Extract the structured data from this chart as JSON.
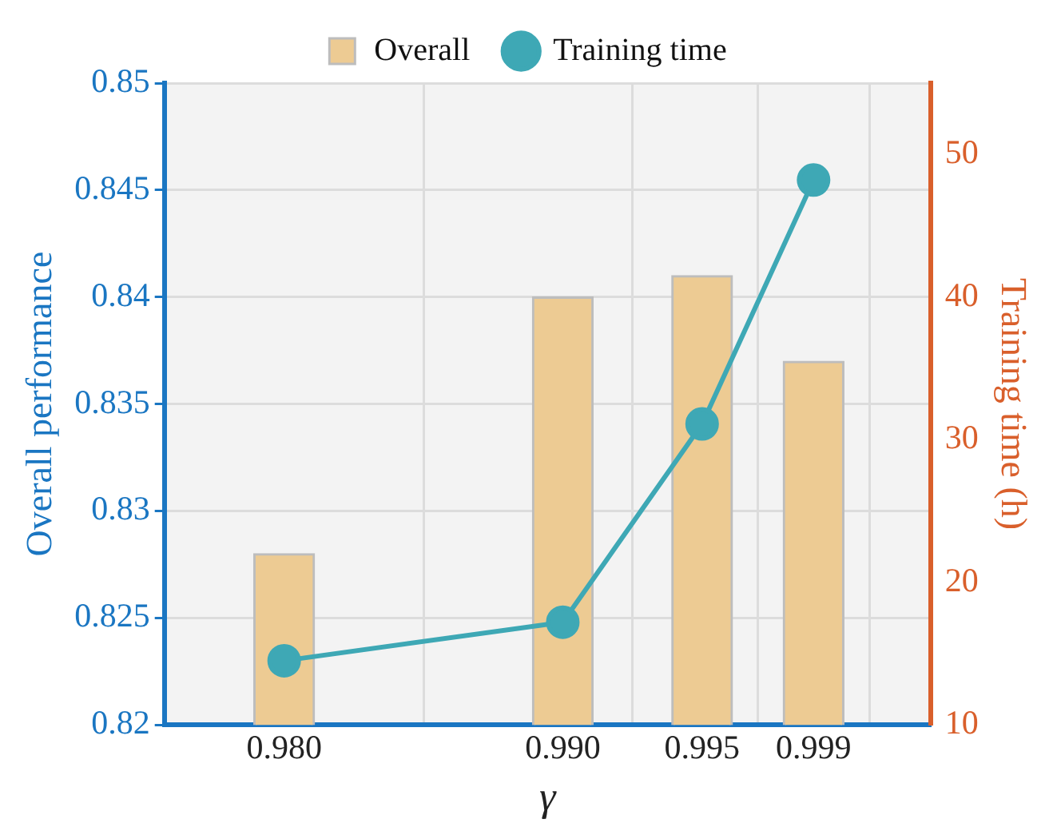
{
  "chart_data": {
    "type": "bar",
    "x": [
      0.98,
      0.99,
      0.995,
      0.999
    ],
    "xlim": [
      0.9757,
      1.0032
    ],
    "xticks": [
      {
        "value": 0.98,
        "label": "0.980"
      },
      {
        "value": 0.99,
        "label": "0.990"
      },
      {
        "value": 0.995,
        "label": "0.995"
      },
      {
        "value": 0.999,
        "label": "0.999"
      }
    ],
    "xlabel": "γ",
    "ylabel": "Overall performance",
    "y2label": "Training time (h)",
    "ylim": [
      0.82,
      0.85
    ],
    "yticks": [
      0.82,
      0.825,
      0.83,
      0.835,
      0.84,
      0.845,
      0.85
    ],
    "y2lim": [
      10,
      55
    ],
    "y2ticks": [
      10,
      20,
      30,
      40,
      50
    ],
    "series": [
      {
        "name": "Overall",
        "color": "#edcb93",
        "values": [
          0.828,
          0.84,
          0.841,
          0.837
        ]
      },
      {
        "name": "Training time",
        "type": "line",
        "axis": "y2",
        "color": "#3ea8b5",
        "values": [
          14.5,
          17.2,
          31.1,
          48.2
        ]
      }
    ],
    "grid": true,
    "legend": "top",
    "marker": "circle",
    "line_style": "solid"
  }
}
